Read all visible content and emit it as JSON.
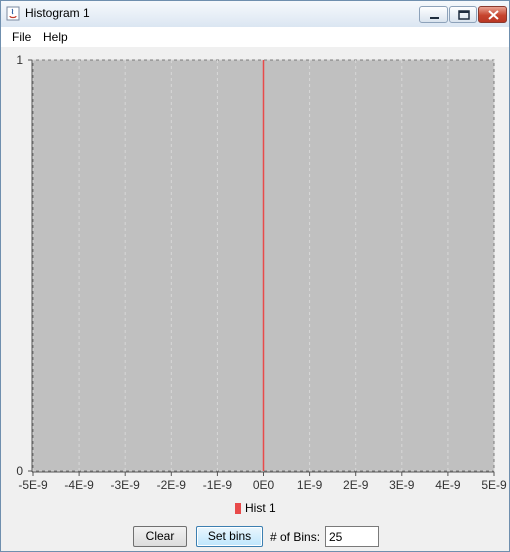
{
  "window": {
    "title": "Histogram 1"
  },
  "menu": {
    "file": "File",
    "help": "Help"
  },
  "chart_data": {
    "type": "bar",
    "title": "",
    "xlabel": "",
    "ylabel": "",
    "xlim": [
      -5e-09,
      5e-09
    ],
    "ylim": [
      0,
      1
    ],
    "x_ticks": [
      "-5E-9",
      "-4E-9",
      "-3E-9",
      "-2E-9",
      "-1E-9",
      "0E0",
      "1E-9",
      "2E-9",
      "3E-9",
      "4E-9",
      "5E-9"
    ],
    "x_tick_values": [
      -5e-09,
      -4e-09,
      -3e-09,
      -2e-09,
      -1e-09,
      0,
      1e-09,
      2e-09,
      3e-09,
      4e-09,
      5e-09
    ],
    "y_ticks": [
      "0",
      "1"
    ],
    "y_tick_values": [
      0,
      1
    ],
    "grid": true,
    "legend_position": "bottom",
    "series": [
      {
        "name": "Hist 1",
        "color": "#e84a4a",
        "points": [
          {
            "x": 0,
            "y": 1
          }
        ]
      }
    ],
    "plot_background": "#c0c0c0"
  },
  "controls": {
    "clear_label": "Clear",
    "setbins_label": "Set bins",
    "bins_label": "# of Bins:",
    "bins_value": "25"
  }
}
